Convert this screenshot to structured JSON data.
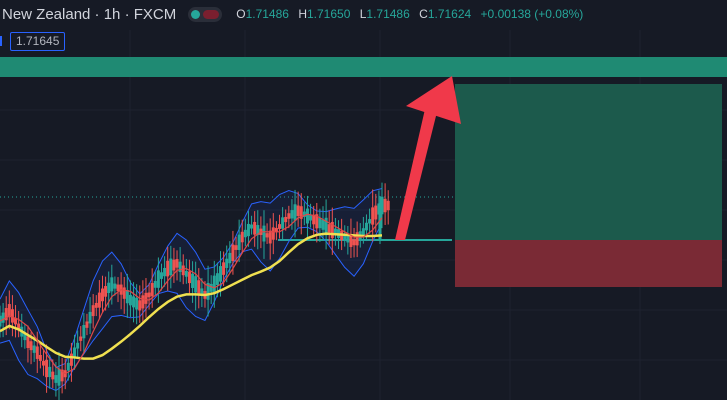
{
  "header": {
    "title": "New Zealand · 1h · FXCM",
    "ohlc": {
      "o_label": "O",
      "o": "1.71486",
      "h_label": "H",
      "h": "1.71650",
      "l_label": "L",
      "l": "1.71486",
      "c_label": "C",
      "c": "1.71624",
      "change": "+0.00138 (+0.08%)"
    },
    "toggle_icon": "visibility-toggle-icon"
  },
  "price_tag": "1.71645",
  "colors": {
    "background": "#161a25",
    "up": "#26a69a",
    "down": "#ef5350",
    "target_band": "#1f8a73",
    "profit_zone": "#1c5a4c",
    "loss_zone": "#7a2a35",
    "bollinger": "#2962ff",
    "moving_average": "#f0e050",
    "fast_ma": "#e04848",
    "arrow": "#f0394a"
  },
  "chart_data": {
    "type": "line",
    "description_series": [
      {
        "values": [
          0.3,
          0.34,
          0.28,
          0.22,
          0.18,
          0.12,
          0.08,
          0.1,
          0.18,
          0.26,
          0.34,
          0.4,
          0.44,
          0.42,
          0.38,
          0.36,
          0.4,
          0.46,
          0.5,
          0.52,
          0.48,
          0.44,
          0.4,
          0.44,
          0.5,
          0.56,
          0.62,
          0.66,
          0.64,
          0.62,
          0.66,
          0.7,
          0.72,
          0.7,
          0.68,
          0.66,
          0.64,
          0.62,
          0.6,
          0.64,
          0.7,
          0.74
        ]
      }
    ],
    "levels": {
      "entry": 0.62,
      "target": 1.0,
      "stop": 0.5
    }
  }
}
